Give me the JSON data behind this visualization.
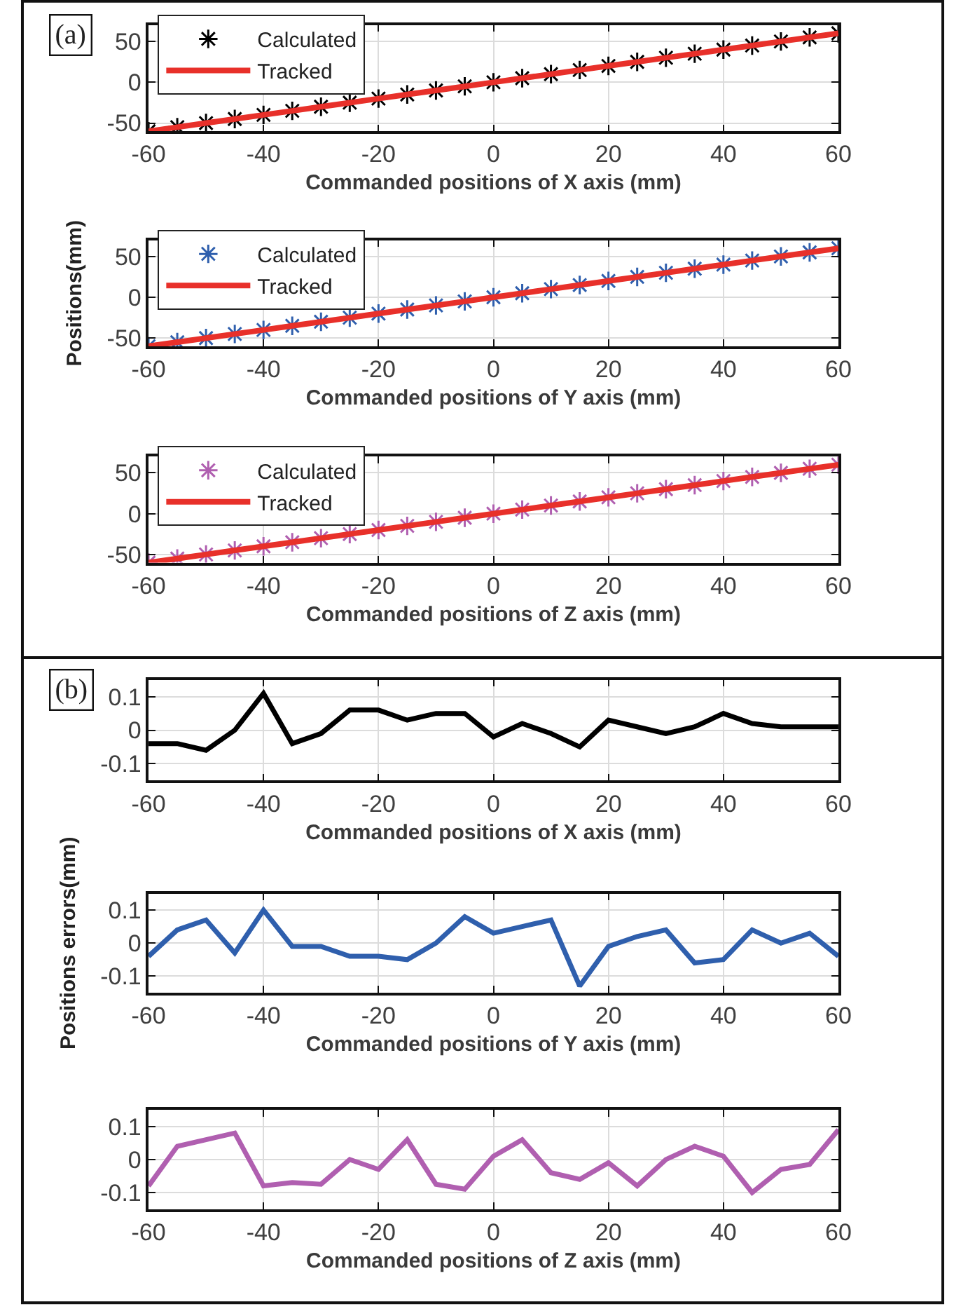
{
  "chart_data": [
    {
      "type": "scatter",
      "x": [
        -60,
        -55,
        -50,
        -45,
        -40,
        -35,
        -30,
        -25,
        -20,
        -15,
        -10,
        -5,
        0,
        5,
        10,
        15,
        20,
        25,
        30,
        35,
        40,
        45,
        50,
        55,
        60
      ],
      "xlabel": "Commanded positions of X axis (mm)",
      "xlim": [
        -60,
        60
      ],
      "xticks": [
        -60,
        -40,
        -20,
        0,
        20,
        40,
        60
      ],
      "ylim": [
        -60,
        70
      ],
      "yticks": [
        -50,
        0,
        50
      ],
      "grid": true,
      "legend": "top left",
      "annotations": [
        "(a)"
      ],
      "series": [
        {
          "name": "Calculated",
          "type": "scatter",
          "marker": "cross",
          "color": "#000000",
          "values": [
            -60,
            -55,
            -50,
            -45,
            -40,
            -35,
            -30,
            -25,
            -20,
            -15,
            -10,
            -5,
            0,
            5,
            10,
            15,
            20,
            25,
            30,
            35,
            40,
            45,
            50,
            55,
            60
          ]
        },
        {
          "name": "Tracked",
          "type": "line",
          "line_style": "solid",
          "color": "#e8302a",
          "values": [
            -60,
            -55,
            -50,
            -45,
            -40,
            -35,
            -30,
            -25,
            -20,
            -15,
            -10,
            -5,
            0,
            5,
            10,
            15,
            20,
            25,
            30,
            35,
            40,
            45,
            50,
            55,
            60
          ]
        }
      ]
    },
    {
      "type": "scatter",
      "x": [
        -60,
        -55,
        -50,
        -45,
        -40,
        -35,
        -30,
        -25,
        -20,
        -15,
        -10,
        -5,
        0,
        5,
        10,
        15,
        20,
        25,
        30,
        35,
        40,
        45,
        50,
        55,
        60
      ],
      "xlabel": "Commanded positions of Y axis (mm)",
      "ylabel": "Positions(mm)",
      "xlim": [
        -60,
        60
      ],
      "xticks": [
        -60,
        -40,
        -20,
        0,
        20,
        40,
        60
      ],
      "ylim": [
        -60,
        70
      ],
      "yticks": [
        -50,
        0,
        50
      ],
      "grid": true,
      "legend": "top left",
      "series": [
        {
          "name": "Calculated",
          "type": "scatter",
          "marker": "cross",
          "color": "#2f5fad",
          "values": [
            -60,
            -55,
            -50,
            -45,
            -40,
            -35,
            -30,
            -25,
            -20,
            -15,
            -10,
            -5,
            0,
            5,
            10,
            15,
            20,
            25,
            30,
            35,
            40,
            45,
            50,
            55,
            60
          ]
        },
        {
          "name": "Tracked",
          "type": "line",
          "line_style": "solid",
          "color": "#e8302a",
          "values": [
            -60,
            -55,
            -50,
            -45,
            -40,
            -35,
            -30,
            -25,
            -20,
            -15,
            -10,
            -5,
            0,
            5,
            10,
            15,
            20,
            25,
            30,
            35,
            40,
            45,
            50,
            55,
            60
          ]
        }
      ]
    },
    {
      "type": "scatter",
      "x": [
        -60,
        -55,
        -50,
        -45,
        -40,
        -35,
        -30,
        -25,
        -20,
        -15,
        -10,
        -5,
        0,
        5,
        10,
        15,
        20,
        25,
        30,
        35,
        40,
        45,
        50,
        55,
        60
      ],
      "xlabel": "Commanded positions of Z axis (mm)",
      "xlim": [
        -60,
        60
      ],
      "xticks": [
        -60,
        -40,
        -20,
        0,
        20,
        40,
        60
      ],
      "ylim": [
        -60,
        70
      ],
      "yticks": [
        -50,
        0,
        50
      ],
      "grid": true,
      "legend": "top left",
      "series": [
        {
          "name": "Calculated",
          "type": "scatter",
          "marker": "cross",
          "color": "#b05fb0",
          "values": [
            -60,
            -55,
            -50,
            -45,
            -40,
            -35,
            -30,
            -25,
            -20,
            -15,
            -10,
            -5,
            0,
            5,
            10,
            15,
            20,
            25,
            30,
            35,
            40,
            45,
            50,
            55,
            60
          ]
        },
        {
          "name": "Tracked",
          "type": "line",
          "line_style": "solid",
          "color": "#e8302a",
          "values": [
            -60,
            -55,
            -50,
            -45,
            -40,
            -35,
            -30,
            -25,
            -20,
            -15,
            -10,
            -5,
            0,
            5,
            10,
            15,
            20,
            25,
            30,
            35,
            40,
            45,
            50,
            55,
            60
          ]
        }
      ]
    },
    {
      "type": "line",
      "x": [
        -60,
        -55,
        -50,
        -45,
        -40,
        -35,
        -30,
        -25,
        -20,
        -15,
        -10,
        -5,
        0,
        5,
        10,
        15,
        20,
        25,
        30,
        35,
        40,
        45,
        50,
        55,
        60
      ],
      "xlabel": "Commanded positions of X axis (mm)",
      "xlim": [
        -60,
        60
      ],
      "xticks": [
        -60,
        -40,
        -20,
        0,
        20,
        40,
        60
      ],
      "ylim": [
        -0.15,
        0.15
      ],
      "yticks": [
        -0.1,
        0,
        0.1
      ],
      "grid": true,
      "annotations": [
        "(b)"
      ],
      "series": [
        {
          "color": "#000000",
          "values": [
            -0.04,
            -0.04,
            -0.06,
            0.0,
            0.11,
            -0.04,
            -0.01,
            0.06,
            0.06,
            0.03,
            0.05,
            0.05,
            -0.02,
            0.02,
            -0.01,
            -0.05,
            0.03,
            0.01,
            -0.01,
            0.01,
            0.05,
            0.02,
            0.01,
            0.01,
            0.01
          ]
        }
      ]
    },
    {
      "type": "line",
      "x": [
        -60,
        -55,
        -50,
        -45,
        -40,
        -35,
        -30,
        -25,
        -20,
        -15,
        -10,
        -5,
        0,
        5,
        10,
        15,
        20,
        25,
        30,
        35,
        40,
        45,
        50,
        55,
        60
      ],
      "xlabel": "Commanded positions of Y axis (mm)",
      "ylabel": "Positions errors(mm)",
      "xlim": [
        -60,
        60
      ],
      "xticks": [
        -60,
        -40,
        -20,
        0,
        20,
        40,
        60
      ],
      "ylim": [
        -0.15,
        0.15
      ],
      "yticks": [
        -0.1,
        0,
        0.1
      ],
      "grid": true,
      "series": [
        {
          "color": "#2f5fad",
          "values": [
            -0.04,
            0.04,
            0.07,
            -0.03,
            0.1,
            -0.01,
            -0.01,
            -0.04,
            -0.04,
            -0.05,
            0.0,
            0.08,
            0.03,
            0.05,
            0.07,
            -0.13,
            -0.01,
            0.02,
            0.04,
            -0.06,
            -0.05,
            0.04,
            0.0,
            0.03,
            -0.04
          ]
        }
      ]
    },
    {
      "type": "line",
      "x": [
        -60,
        -55,
        -50,
        -45,
        -40,
        -35,
        -30,
        -25,
        -20,
        -15,
        -10,
        -5,
        0,
        5,
        10,
        15,
        20,
        25,
        30,
        35,
        40,
        45,
        50,
        55,
        60
      ],
      "xlabel": "Commanded positions of Z axis (mm)",
      "xlim": [
        -60,
        60
      ],
      "xticks": [
        -60,
        -40,
        -20,
        0,
        20,
        40,
        60
      ],
      "ylim": [
        -0.15,
        0.15
      ],
      "yticks": [
        -0.1,
        0,
        0.1
      ],
      "grid": true,
      "series": [
        {
          "color": "#b05fb0",
          "values": [
            -0.08,
            0.04,
            0.06,
            0.08,
            -0.08,
            -0.07,
            -0.075,
            0.0,
            -0.03,
            0.06,
            -0.075,
            -0.09,
            0.01,
            0.06,
            -0.04,
            -0.06,
            -0.01,
            -0.08,
            0.0,
            0.04,
            0.01,
            -0.1,
            -0.03,
            -0.015,
            0.09
          ]
        }
      ]
    }
  ]
}
